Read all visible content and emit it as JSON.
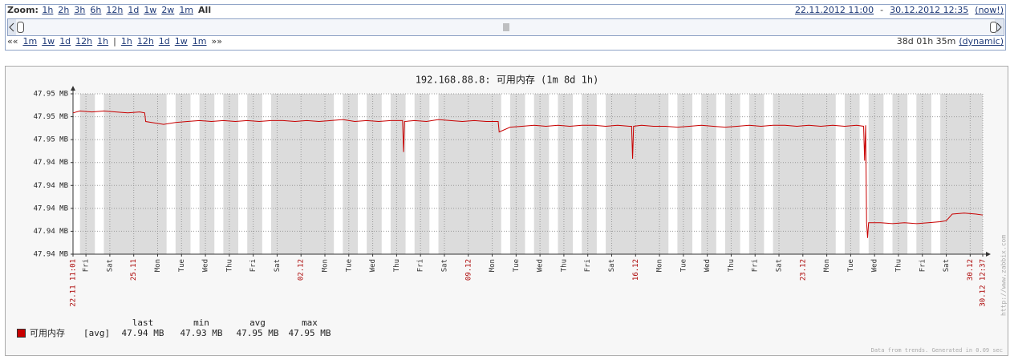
{
  "controls": {
    "zoom_label": "Zoom:",
    "zoom_links": [
      "1h",
      "2h",
      "3h",
      "6h",
      "12h",
      "1d",
      "1w",
      "2w",
      "1m"
    ],
    "zoom_active": "All",
    "date_from": "22.11.2012 11:00",
    "date_sep": "-",
    "date_to": "30.12.2012 12:35",
    "now": "(now!)",
    "nav_left": "««",
    "nav_back": [
      "1m",
      "1w",
      "1d",
      "12h",
      "1h"
    ],
    "nav_sep": "|",
    "nav_fwd": [
      "1h",
      "12h",
      "1d",
      "1w",
      "1m"
    ],
    "nav_right": "»»",
    "duration": "38d 01h 35m",
    "mode": "(dynamic)"
  },
  "chart_data": {
    "type": "line",
    "title": "192.168.88.8: 可用内存 (1m 8d 1h)",
    "x": [
      "22.11 11:01",
      "22.11 18:00",
      "23.11 06:00",
      "23.11 18:00",
      "24.11 06:00",
      "24.11 18:00",
      "25.11 06:00",
      "25.11 11:00",
      "25.11 12:00",
      "25.11 18:00",
      "26.11 06:00",
      "26.11 18:00",
      "27.11 06:00",
      "27.11 18:00",
      "28.11 06:00",
      "28.11 18:00",
      "29.11 06:00",
      "29.11 18:00",
      "30.11 06:00",
      "30.11 18:00",
      "01.12 06:00",
      "01.12 18:00",
      "02.12 06:00",
      "02.12 18:00",
      "03.12 06:00",
      "03.12 18:00",
      "04.12 06:00",
      "04.12 18:00",
      "05.12 06:00",
      "05.12 18:00",
      "06.12 06:00",
      "06.12 07:00",
      "06.12 08:00",
      "06.12 18:00",
      "07.12 06:00",
      "07.12 18:00",
      "08.12 06:00",
      "08.12 18:00",
      "09.12 06:00",
      "09.12 18:00",
      "10.12 06:00",
      "10.12 07:00",
      "10.12 18:00",
      "11.12 06:00",
      "11.12 18:00",
      "12.12 06:00",
      "12.12 18:00",
      "13.12 06:00",
      "13.12 18:00",
      "14.12 06:00",
      "14.12 18:00",
      "15.12 06:00",
      "15.12 18:00",
      "15.12 20:00",
      "15.12 21:00",
      "15.12 22:00",
      "16.12 06:00",
      "16.12 18:00",
      "17.12 06:00",
      "17.12 18:00",
      "18.12 06:00",
      "18.12 18:00",
      "19.12 06:00",
      "19.12 18:00",
      "20.12 06:00",
      "20.12 18:00",
      "21.12 06:00",
      "21.12 18:00",
      "22.12 06:00",
      "22.12 18:00",
      "23.12 06:00",
      "23.12 18:00",
      "24.12 06:00",
      "24.12 18:00",
      "25.12 06:00",
      "25.12 13:00",
      "25.12 14:00",
      "25.12 15:00",
      "25.12 16:00",
      "25.12 17:00",
      "25.12 18:00",
      "26.12 06:00",
      "26.12 18:00",
      "27.12 06:00",
      "27.12 18:00",
      "28.12 06:00",
      "28.12 18:00",
      "29.12 00:00",
      "29.12 06:00",
      "29.12 18:00",
      "30.12 06:00",
      "30.12 12:37"
    ],
    "series": [
      {
        "name": "可用内存",
        "color": "#c80000",
        "values": [
          47.9499,
          47.9501,
          47.95,
          47.9501,
          47.95,
          47.9499,
          47.95,
          47.9499,
          47.949,
          47.9489,
          47.9487,
          47.9489,
          47.949,
          47.9491,
          47.949,
          47.9491,
          47.949,
          47.9491,
          47.949,
          47.9491,
          47.9491,
          47.949,
          47.9491,
          47.949,
          47.9491,
          47.9492,
          47.949,
          47.9491,
          47.949,
          47.9491,
          47.9491,
          47.9458,
          47.949,
          47.9491,
          47.949,
          47.9492,
          47.9491,
          47.949,
          47.9491,
          47.949,
          47.949,
          47.9479,
          47.9484,
          47.9485,
          47.9486,
          47.9485,
          47.9486,
          47.9485,
          47.9486,
          47.9486,
          47.9485,
          47.9486,
          47.9485,
          47.9485,
          47.9451,
          47.9485,
          47.9486,
          47.9485,
          47.9485,
          47.9484,
          47.9485,
          47.9486,
          47.9485,
          47.9484,
          47.9485,
          47.9486,
          47.9485,
          47.9486,
          47.9486,
          47.9485,
          47.9486,
          47.9485,
          47.9486,
          47.9485,
          47.9486,
          47.9485,
          47.9449,
          47.9486,
          47.9384,
          47.9368,
          47.9384,
          47.9384,
          47.9383,
          47.9384,
          47.9383,
          47.9384,
          47.9385,
          47.9386,
          47.9393,
          47.9394,
          47.9393,
          47.9392
        ]
      }
    ],
    "ylim": [
      47.9351,
      47.9519
    ],
    "yticks": [
      {
        "value": 47.9519,
        "label": "47.95 MB"
      },
      {
        "value": 47.9495,
        "label": "47.95 MB"
      },
      {
        "value": 47.9471,
        "label": "47.95 MB"
      },
      {
        "value": 47.9447,
        "label": "47.94 MB"
      },
      {
        "value": 47.9423,
        "label": "47.94 MB"
      },
      {
        "value": 47.9399,
        "label": "47.94 MB"
      },
      {
        "value": 47.9375,
        "label": "47.94 MB"
      },
      {
        "value": 47.9351,
        "label": "47.94 MB"
      }
    ],
    "xticks": [
      {
        "value": "22.11 11:01",
        "label": "22.11 11:01",
        "color": "#aa0000"
      },
      {
        "value": "23.11 00:00",
        "label": "Fri"
      },
      {
        "value": "24.11 00:00",
        "label": "Sat"
      },
      {
        "value": "25.11 00:00",
        "label": "25.11",
        "color": "#aa0000"
      },
      {
        "value": "26.11 00:00",
        "label": "Mon"
      },
      {
        "value": "27.11 00:00",
        "label": "Tue"
      },
      {
        "value": "28.11 00:00",
        "label": "Wed"
      },
      {
        "value": "29.11 00:00",
        "label": "Thu"
      },
      {
        "value": "30.11 00:00",
        "label": "Fri"
      },
      {
        "value": "01.12 00:00",
        "label": "Sat"
      },
      {
        "value": "02.12 00:00",
        "label": "02.12",
        "color": "#aa0000"
      },
      {
        "value": "03.12 00:00",
        "label": "Mon"
      },
      {
        "value": "04.12 00:00",
        "label": "Tue"
      },
      {
        "value": "05.12 00:00",
        "label": "Wed"
      },
      {
        "value": "06.12 00:00",
        "label": "Thu"
      },
      {
        "value": "07.12 00:00",
        "label": "Fri"
      },
      {
        "value": "08.12 00:00",
        "label": "Sat"
      },
      {
        "value": "09.12 00:00",
        "label": "09.12",
        "color": "#aa0000"
      },
      {
        "value": "10.12 00:00",
        "label": "Mon"
      },
      {
        "value": "11.12 00:00",
        "label": "Tue"
      },
      {
        "value": "12.12 00:00",
        "label": "Wed"
      },
      {
        "value": "13.12 00:00",
        "label": "Thu"
      },
      {
        "value": "14.12 00:00",
        "label": "Fri"
      },
      {
        "value": "15.12 00:00",
        "label": "Sat"
      },
      {
        "value": "16.12 00:00",
        "label": "16.12",
        "color": "#aa0000"
      },
      {
        "value": "17.12 00:00",
        "label": "Mon"
      },
      {
        "value": "18.12 00:00",
        "label": "Tue"
      },
      {
        "value": "19.12 00:00",
        "label": "Wed"
      },
      {
        "value": "20.12 00:00",
        "label": "Thu"
      },
      {
        "value": "21.12 00:00",
        "label": "Fri"
      },
      {
        "value": "22.12 00:00",
        "label": "Sat"
      },
      {
        "value": "23.12 00:00",
        "label": "23.12",
        "color": "#aa0000"
      },
      {
        "value": "24.12 00:00",
        "label": "Mon"
      },
      {
        "value": "25.12 00:00",
        "label": "Tue"
      },
      {
        "value": "26.12 00:00",
        "label": "Wed"
      },
      {
        "value": "27.12 00:00",
        "label": "Thu"
      },
      {
        "value": "28.12 00:00",
        "label": "Fri"
      },
      {
        "value": "29.12 00:00",
        "label": "Sat"
      },
      {
        "value": "30.12 00:00",
        "label": "30.12",
        "color": "#aa0000"
      },
      {
        "value": "30.12 12:37",
        "label": "30.12 12:37",
        "color": "#aa0000"
      }
    ],
    "grid": true,
    "legend": {
      "headers": [
        "last",
        "min",
        "avg",
        "max"
      ],
      "function": "[avg]",
      "values": [
        "47.94 MB",
        "47.93 MB",
        "47.95 MB",
        "47.95 MB"
      ]
    },
    "side_note": "http://www.zabbix.com",
    "footer": "Data from trends. Generated in 0.09 sec"
  }
}
